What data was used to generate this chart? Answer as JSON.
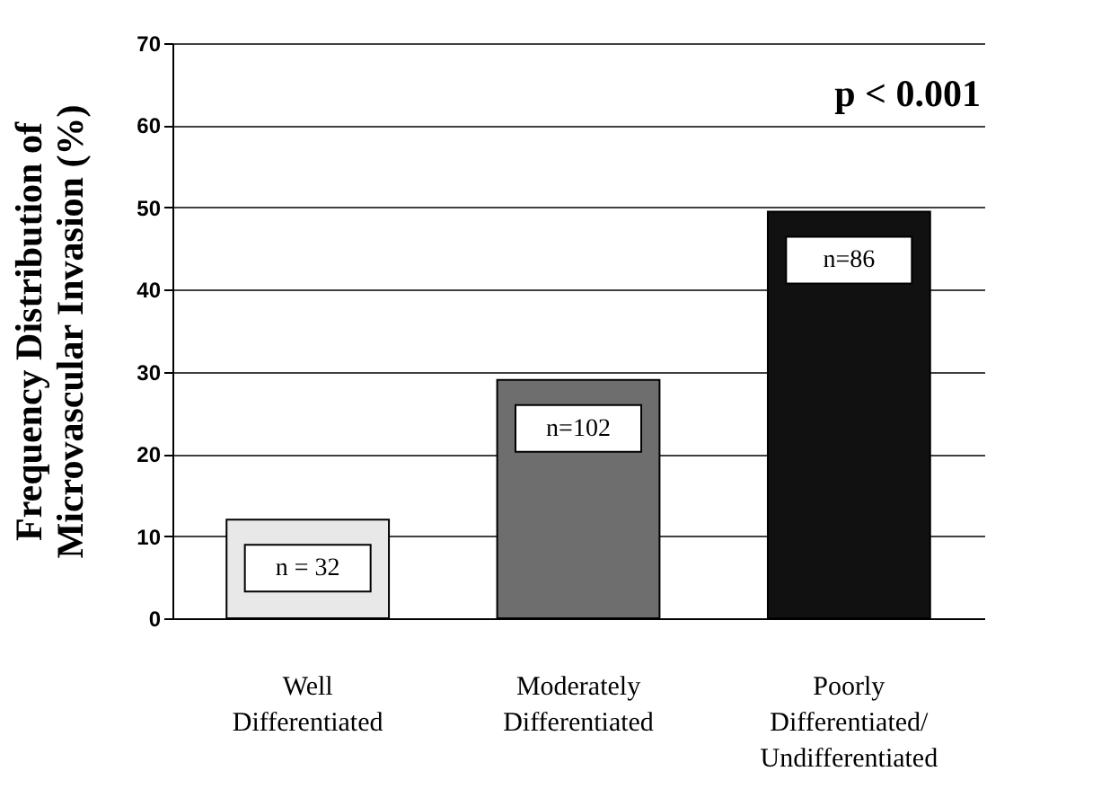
{
  "chart_data": {
    "type": "bar",
    "categories": [
      "Well\nDifferentiated",
      "Moderately\nDifferentiated",
      "Poorly\nDifferentiated/\nUndifferentiated"
    ],
    "values": [
      12,
      29,
      49.5
    ],
    "colors": [
      "#e8e8e8",
      "#6e6e6e",
      "#111111"
    ],
    "ylabel": "Frequency Distribution of\nMicrovascular Invasion (%)",
    "ylim": [
      0,
      70
    ],
    "yticks": [
      0,
      10,
      20,
      30,
      40,
      50,
      60,
      70
    ],
    "grid": "y",
    "annotations": [
      "n = 32",
      "n=102",
      "n=86",
      "p < 0.001"
    ]
  }
}
